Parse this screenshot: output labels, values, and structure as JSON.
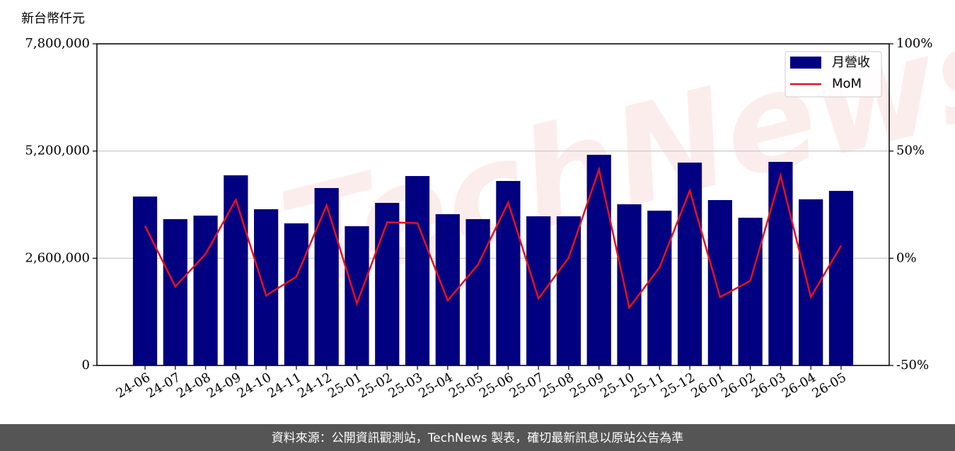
{
  "chart_data": {
    "type": "bar_line",
    "y_label": "新台幣仟元",
    "watermark": "TechNews",
    "categories": [
      "24-06",
      "24-07",
      "24-08",
      "24-09",
      "24-10",
      "24-11",
      "24-12",
      "25-01",
      "25-02",
      "25-03",
      "25-04",
      "25-05",
      "25-06",
      "25-07",
      "25-08",
      "25-09",
      "25-10",
      "25-11",
      "25-12",
      "26-01",
      "26-02",
      "26-03",
      "26-04",
      "26-05"
    ],
    "series": [
      {
        "name": "月營收",
        "color": "#000080",
        "values": [
          4097000,
          3549000,
          3634000,
          4611000,
          3789000,
          3446000,
          4303000,
          3377000,
          3943000,
          4594000,
          3669000,
          3549000,
          4474000,
          3617000,
          3617000,
          5109000,
          3909000,
          3754000,
          4920000,
          4011000,
          3583000,
          4937000,
          4029000,
          4234000
        ]
      },
      {
        "name": "MoM",
        "color": "#e8101a",
        "axis": "y2",
        "values": [
          15.1,
          -13.2,
          2.0,
          27.3,
          -17.4,
          -8.6,
          24.7,
          -21.1,
          16.8,
          16.4,
          -19.7,
          -3.0,
          26.0,
          -18.8,
          0.3,
          41.4,
          -23.0,
          -4.3,
          31.6,
          -18.1,
          -10.5,
          38.5,
          -18.1,
          5.9
        ]
      }
    ],
    "ylim": [
      0,
      7800000
    ],
    "yticks": [
      {
        "value": 0,
        "label": "0"
      },
      {
        "value": 2600000,
        "label": "2,600,000"
      },
      {
        "value": 5200000,
        "label": "5,200,000"
      },
      {
        "value": 7800000,
        "label": "7,800,000"
      }
    ],
    "y2lim": [
      -50,
      100
    ],
    "y2ticks": [
      {
        "value": -50,
        "label": "-50%"
      },
      {
        "value": 0,
        "label": "0%"
      },
      {
        "value": 50,
        "label": "50%"
      },
      {
        "value": 100,
        "label": "100%"
      }
    ],
    "grid": true,
    "legend": "upper right"
  },
  "footer": "資料來源：公開資訊觀測站，TechNews 製表，確切最新訊息以原站公告為準"
}
